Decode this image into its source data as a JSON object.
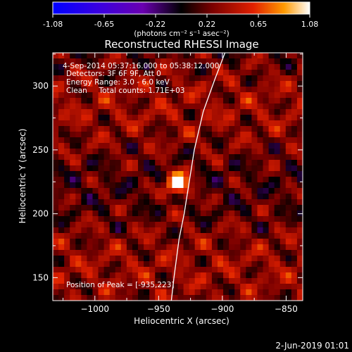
{
  "colorbar": {
    "tick_labels": [
      "-1.08",
      "-0.65",
      "-0.22",
      "0.22",
      "0.65",
      "1.08"
    ],
    "units_label": "(photons cm⁻² s⁻¹ asec⁻²)",
    "range": [
      -1.08,
      1.08
    ]
  },
  "footer": {
    "date": "2-Jun-2019 01:01"
  },
  "chart_data": {
    "type": "heatmap",
    "title": "Reconstructed RHESSI Image",
    "annotations": [
      "4-Sep-2014 05:37:16.000 to 05:38:12.000",
      "Detectors: 3F 6F 9F, Att 0",
      "Energy Range: 3.0 - 6.0 keV",
      "Clean     Total counts: 1.71E+03",
      "Position of Peak = [-935,223]"
    ],
    "xlabel": "Heliocentric X (arcsec)",
    "ylabel": "Heliocentric Y (arcsec)",
    "xlim": [
      -1033,
      -837
    ],
    "ylim": [
      132,
      326
    ],
    "x_ticks": [
      {
        "value": -1000,
        "label": "−1000"
      },
      {
        "value": -950,
        "label": "−950"
      },
      {
        "value": -900,
        "label": "−900"
      },
      {
        "value": -850,
        "label": "−850"
      }
    ],
    "y_ticks": [
      {
        "value": 150,
        "label": "150"
      },
      {
        "value": 200,
        "label": "200"
      },
      {
        "value": 250,
        "label": "250"
      },
      {
        "value": 300,
        "label": "300"
      }
    ],
    "peak": {
      "x": -935,
      "y": 223,
      "value": 1.08
    },
    "limb": [
      [
        -940,
        132
      ],
      [
        -938,
        150
      ],
      [
        -934,
        180
      ],
      [
        -930,
        200
      ],
      [
        -926,
        225
      ],
      [
        -922,
        250
      ],
      [
        -915,
        280
      ],
      [
        -906,
        305
      ],
      [
        -898,
        326
      ]
    ],
    "colormap": [
      "#0000ff",
      "#3a00e0",
      "#6a00b0",
      "#000000",
      "#7a0000",
      "#e02000",
      "#ff9a00",
      "#ffffff"
    ],
    "grid": false,
    "legend": "none"
  }
}
